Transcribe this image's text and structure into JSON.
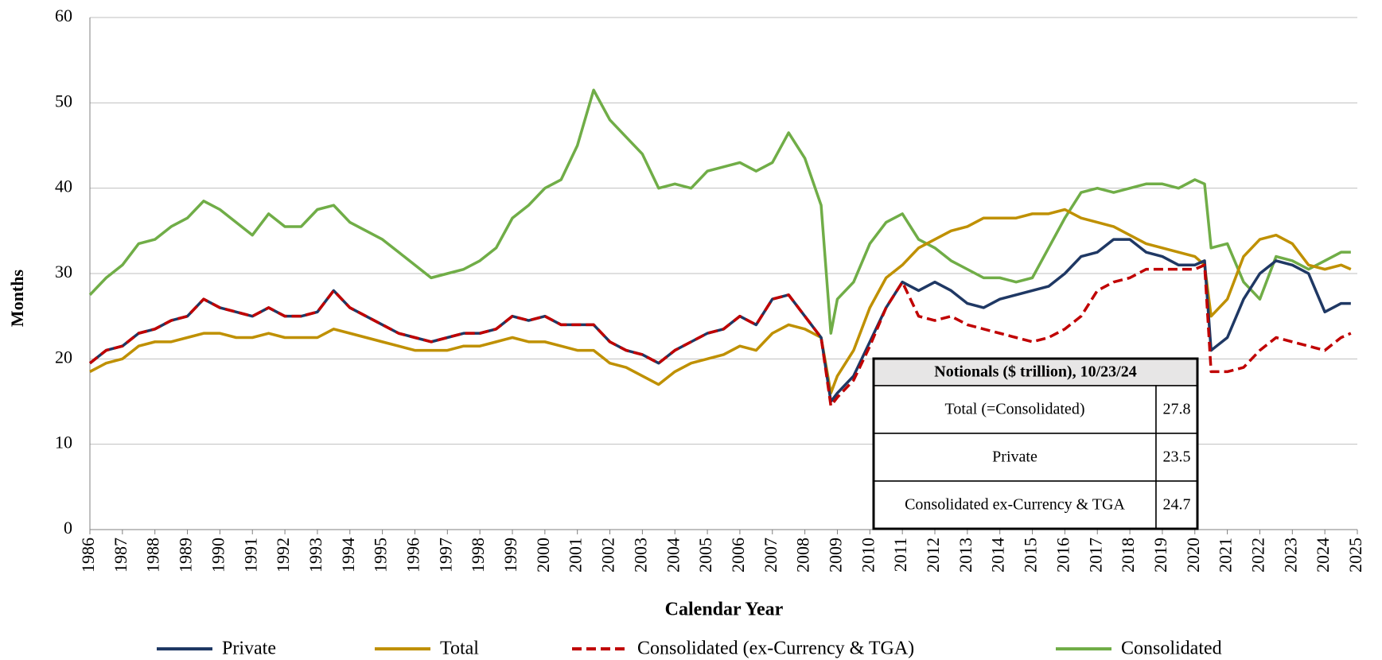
{
  "chart_data": {
    "type": "line",
    "xlabel": "Calendar Year",
    "ylabel": "Months",
    "x": [
      1986,
      1986.5,
      1987,
      1987.5,
      1988,
      1988.5,
      1989,
      1989.5,
      1990,
      1990.5,
      1991,
      1991.5,
      1992,
      1992.5,
      1993,
      1993.5,
      1994,
      1994.5,
      1995,
      1995.5,
      1996,
      1996.5,
      1997,
      1997.5,
      1998,
      1998.5,
      1999,
      1999.5,
      2000,
      2000.5,
      2001,
      2001.5,
      2002,
      2002.5,
      2003,
      2003.5,
      2004,
      2004.5,
      2005,
      2005.5,
      2006,
      2006.5,
      2007,
      2007.5,
      2008,
      2008.5,
      2008.8,
      2009,
      2009.5,
      2010,
      2010.5,
      2011,
      2011.5,
      2012,
      2012.5,
      2013,
      2013.5,
      2014,
      2014.5,
      2015,
      2015.5,
      2016,
      2016.5,
      2017,
      2017.5,
      2018,
      2018.5,
      2019,
      2019.5,
      2020,
      2020.3,
      2020.5,
      2021,
      2021.5,
      2022,
      2022.5,
      2023,
      2023.5,
      2024,
      2024.5,
      2024.8
    ],
    "series": [
      {
        "name": "Private",
        "color": "#1f3864",
        "dashed": false,
        "values": [
          19.5,
          21,
          21.5,
          23,
          23.5,
          24.5,
          25,
          27,
          26,
          25.5,
          25,
          26,
          25,
          25,
          25.5,
          28,
          26,
          25,
          24,
          23,
          22.5,
          22,
          22.5,
          23,
          23,
          23.5,
          25,
          24.5,
          25,
          24,
          24,
          24,
          22,
          21,
          20.5,
          19.5,
          21,
          22,
          23,
          23.5,
          25,
          24,
          27,
          27.5,
          25,
          22.5,
          15,
          16,
          18,
          22,
          26,
          29,
          28,
          29,
          28,
          26.5,
          26,
          27,
          27.5,
          28,
          28.5,
          30,
          32,
          32.5,
          34,
          34,
          32.5,
          32,
          31,
          31,
          31.5,
          21,
          22.5,
          27,
          30,
          31.5,
          31,
          30,
          25.5,
          26.5,
          26.5
        ]
      },
      {
        "name": "Total",
        "color": "#bf9000",
        "dashed": false,
        "values": [
          18.5,
          19.5,
          20,
          21.5,
          22,
          22,
          22.5,
          23,
          23,
          22.5,
          22.5,
          23,
          22.5,
          22.5,
          22.5,
          23.5,
          23,
          22.5,
          22,
          21.5,
          21,
          21,
          21,
          21.5,
          21.5,
          22,
          22.5,
          22,
          22,
          21.5,
          21,
          21,
          19.5,
          19,
          18,
          17,
          18.5,
          19.5,
          20,
          20.5,
          21.5,
          21,
          23,
          24,
          23.5,
          22.5,
          16,
          18,
          21,
          26,
          29.5,
          31,
          33,
          34,
          35,
          35.5,
          36.5,
          36.5,
          36.5,
          37,
          37,
          37.5,
          36.5,
          36,
          35.5,
          34.5,
          33.5,
          33,
          32.5,
          32,
          31,
          25,
          27,
          32,
          34,
          34.5,
          33.5,
          31,
          30.5,
          31,
          30.5
        ]
      },
      {
        "name": "Consolidated (ex-Currency & TGA)",
        "color": "#c00000",
        "dashed": true,
        "values": [
          19.5,
          21,
          21.5,
          23,
          23.5,
          24.5,
          25,
          27,
          26,
          25.5,
          25,
          26,
          25,
          25,
          25.5,
          28,
          26,
          25,
          24,
          23,
          22.5,
          22,
          22.5,
          23,
          23,
          23.5,
          25,
          24.5,
          25,
          24,
          24,
          24,
          22,
          21,
          20.5,
          19.5,
          21,
          22,
          23,
          23.5,
          25,
          24,
          27,
          27.5,
          25,
          22.5,
          14.5,
          15.5,
          17.5,
          21.5,
          26,
          29,
          25,
          24.5,
          25,
          24,
          23.5,
          23,
          22.5,
          22,
          22.5,
          23.5,
          25,
          28,
          29,
          29.5,
          30.5,
          30.5,
          30.5,
          30.5,
          31,
          18.5,
          18.5,
          19,
          21,
          22.5,
          22,
          21.5,
          21,
          22.5,
          23
        ]
      },
      {
        "name": "Consolidated",
        "color": "#70ad47",
        "dashed": false,
        "values": [
          27.5,
          29.5,
          31,
          33.5,
          34,
          35.5,
          36.5,
          38.5,
          37.5,
          36,
          34.5,
          37,
          35.5,
          35.5,
          37.5,
          38,
          36,
          35,
          34,
          32.5,
          31,
          29.5,
          30,
          30.5,
          31.5,
          33,
          36.5,
          38,
          40,
          41,
          45,
          51.5,
          48,
          46,
          44,
          40,
          40.5,
          40,
          42,
          42.5,
          43,
          42,
          43,
          46.5,
          43.5,
          38,
          23,
          27,
          29,
          33.5,
          36,
          37,
          34,
          33,
          31.5,
          30.5,
          29.5,
          29.5,
          29,
          29.5,
          33,
          36.5,
          39.5,
          40,
          39.5,
          40,
          40.5,
          40.5,
          40,
          41,
          40.5,
          33,
          33.5,
          29,
          27,
          32,
          31.5,
          30.5,
          31.5,
          32.5,
          32.5
        ]
      }
    ],
    "xlim": [
      1986,
      2025
    ],
    "xticks": [
      1986,
      1987,
      1988,
      1989,
      1990,
      1991,
      1992,
      1993,
      1994,
      1995,
      1996,
      1997,
      1998,
      1999,
      2000,
      2001,
      2002,
      2003,
      2004,
      2005,
      2006,
      2007,
      2008,
      2009,
      2010,
      2011,
      2012,
      2013,
      2014,
      2015,
      2016,
      2017,
      2018,
      2019,
      2020,
      2021,
      2022,
      2023,
      2024,
      2025
    ],
    "ylim": [
      0,
      60
    ],
    "yticks": [
      0,
      10,
      20,
      30,
      40,
      50,
      60
    ],
    "grid": true,
    "legend": "bottom",
    "table": {
      "title": "Notionals ($ trillion), 10/23/24",
      "rows": [
        [
          "Total (=Consolidated)",
          27.8
        ],
        [
          "Private",
          23.5
        ],
        [
          "Consolidated ex-Currency & TGA",
          24.7
        ]
      ]
    }
  }
}
